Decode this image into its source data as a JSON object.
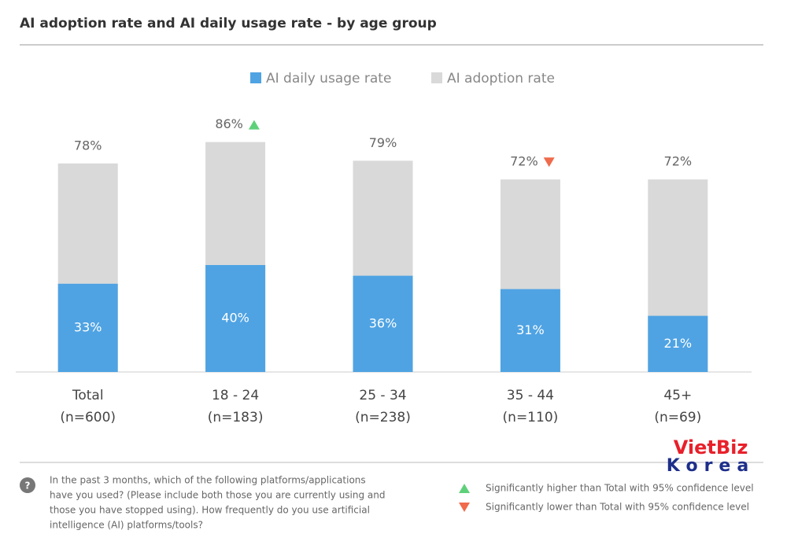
{
  "chart_data": {
    "type": "overlap_bar",
    "title": "AI adoption rate and AI daily usage rate  - by age group",
    "categories": [
      "Total",
      "18 - 24",
      "25 - 34",
      "35 - 44",
      "45+"
    ],
    "sample_sizes": [
      "(n=600)",
      "(n=183)",
      "(n=238)",
      "(n=110)",
      "(n=69)"
    ],
    "series": [
      {
        "name": "AI daily usage rate",
        "color": "#4fa3e3",
        "values": [
          33,
          40,
          36,
          31,
          21
        ],
        "value_labels": [
          "33%",
          "40%",
          "36%",
          "31%",
          "21%"
        ]
      },
      {
        "name": "AI adoption rate",
        "color": "#d9d9d9",
        "values": [
          78,
          86,
          79,
          72,
          72
        ],
        "value_labels": [
          "78%",
          "86%",
          "79%",
          "72%",
          "72%"
        ]
      }
    ],
    "significance": [
      null,
      "higher",
      null,
      "lower",
      null
    ],
    "significance_colors": {
      "higher": "#5fd07a",
      "lower": "#ef6b4c"
    },
    "significance_notes": {
      "higher": "Significantly higher than Total with 95% confidence level",
      "lower": "Significantly lower than Total with 95% confidence level"
    },
    "ylim": [
      0,
      100
    ],
    "footnote": [
      "In the past 3 months, which of the following platforms/applications",
      "have you used? (Please include both those you are currently using and",
      "those you have stopped using). How frequently do you use artificial",
      "intelligence (AI) platforms/tools?"
    ],
    "brand": [
      "VietBiz",
      "Korea"
    ]
  }
}
